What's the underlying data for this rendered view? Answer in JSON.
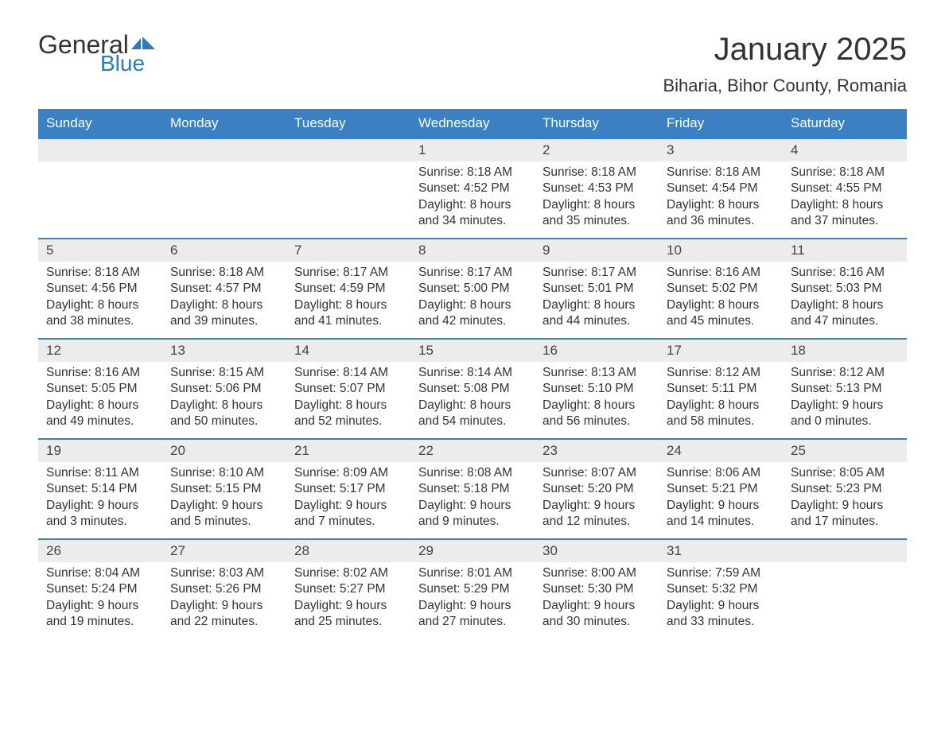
{
  "logo": {
    "text_general": "General",
    "text_blue": "Blue",
    "flag_color": "#2b7bbf"
  },
  "title": "January 2025",
  "location": "Biharia, Bihor County, Romania",
  "colors": {
    "header_bg": "#3a80c3",
    "header_text": "#ffffff",
    "daynum_bg": "#ececec",
    "row_border": "#3a80c3",
    "body_text": "#333333",
    "background": "#ffffff"
  },
  "weekdays": [
    "Sunday",
    "Monday",
    "Tuesday",
    "Wednesday",
    "Thursday",
    "Friday",
    "Saturday"
  ],
  "weeks": [
    [
      null,
      null,
      null,
      {
        "day": "1",
        "sunrise": "8:18 AM",
        "sunset": "4:52 PM",
        "daylight": "8 hours and 34 minutes."
      },
      {
        "day": "2",
        "sunrise": "8:18 AM",
        "sunset": "4:53 PM",
        "daylight": "8 hours and 35 minutes."
      },
      {
        "day": "3",
        "sunrise": "8:18 AM",
        "sunset": "4:54 PM",
        "daylight": "8 hours and 36 minutes."
      },
      {
        "day": "4",
        "sunrise": "8:18 AM",
        "sunset": "4:55 PM",
        "daylight": "8 hours and 37 minutes."
      }
    ],
    [
      {
        "day": "5",
        "sunrise": "8:18 AM",
        "sunset": "4:56 PM",
        "daylight": "8 hours and 38 minutes."
      },
      {
        "day": "6",
        "sunrise": "8:18 AM",
        "sunset": "4:57 PM",
        "daylight": "8 hours and 39 minutes."
      },
      {
        "day": "7",
        "sunrise": "8:17 AM",
        "sunset": "4:59 PM",
        "daylight": "8 hours and 41 minutes."
      },
      {
        "day": "8",
        "sunrise": "8:17 AM",
        "sunset": "5:00 PM",
        "daylight": "8 hours and 42 minutes."
      },
      {
        "day": "9",
        "sunrise": "8:17 AM",
        "sunset": "5:01 PM",
        "daylight": "8 hours and 44 minutes."
      },
      {
        "day": "10",
        "sunrise": "8:16 AM",
        "sunset": "5:02 PM",
        "daylight": "8 hours and 45 minutes."
      },
      {
        "day": "11",
        "sunrise": "8:16 AM",
        "sunset": "5:03 PM",
        "daylight": "8 hours and 47 minutes."
      }
    ],
    [
      {
        "day": "12",
        "sunrise": "8:16 AM",
        "sunset": "5:05 PM",
        "daylight": "8 hours and 49 minutes."
      },
      {
        "day": "13",
        "sunrise": "8:15 AM",
        "sunset": "5:06 PM",
        "daylight": "8 hours and 50 minutes."
      },
      {
        "day": "14",
        "sunrise": "8:14 AM",
        "sunset": "5:07 PM",
        "daylight": "8 hours and 52 minutes."
      },
      {
        "day": "15",
        "sunrise": "8:14 AM",
        "sunset": "5:08 PM",
        "daylight": "8 hours and 54 minutes."
      },
      {
        "day": "16",
        "sunrise": "8:13 AM",
        "sunset": "5:10 PM",
        "daylight": "8 hours and 56 minutes."
      },
      {
        "day": "17",
        "sunrise": "8:12 AM",
        "sunset": "5:11 PM",
        "daylight": "8 hours and 58 minutes."
      },
      {
        "day": "18",
        "sunrise": "8:12 AM",
        "sunset": "5:13 PM",
        "daylight": "9 hours and 0 minutes."
      }
    ],
    [
      {
        "day": "19",
        "sunrise": "8:11 AM",
        "sunset": "5:14 PM",
        "daylight": "9 hours and 3 minutes."
      },
      {
        "day": "20",
        "sunrise": "8:10 AM",
        "sunset": "5:15 PM",
        "daylight": "9 hours and 5 minutes."
      },
      {
        "day": "21",
        "sunrise": "8:09 AM",
        "sunset": "5:17 PM",
        "daylight": "9 hours and 7 minutes."
      },
      {
        "day": "22",
        "sunrise": "8:08 AM",
        "sunset": "5:18 PM",
        "daylight": "9 hours and 9 minutes."
      },
      {
        "day": "23",
        "sunrise": "8:07 AM",
        "sunset": "5:20 PM",
        "daylight": "9 hours and 12 minutes."
      },
      {
        "day": "24",
        "sunrise": "8:06 AM",
        "sunset": "5:21 PM",
        "daylight": "9 hours and 14 minutes."
      },
      {
        "day": "25",
        "sunrise": "8:05 AM",
        "sunset": "5:23 PM",
        "daylight": "9 hours and 17 minutes."
      }
    ],
    [
      {
        "day": "26",
        "sunrise": "8:04 AM",
        "sunset": "5:24 PM",
        "daylight": "9 hours and 19 minutes."
      },
      {
        "day": "27",
        "sunrise": "8:03 AM",
        "sunset": "5:26 PM",
        "daylight": "9 hours and 22 minutes."
      },
      {
        "day": "28",
        "sunrise": "8:02 AM",
        "sunset": "5:27 PM",
        "daylight": "9 hours and 25 minutes."
      },
      {
        "day": "29",
        "sunrise": "8:01 AM",
        "sunset": "5:29 PM",
        "daylight": "9 hours and 27 minutes."
      },
      {
        "day": "30",
        "sunrise": "8:00 AM",
        "sunset": "5:30 PM",
        "daylight": "9 hours and 30 minutes."
      },
      {
        "day": "31",
        "sunrise": "7:59 AM",
        "sunset": "5:32 PM",
        "daylight": "9 hours and 33 minutes."
      },
      null
    ]
  ],
  "labels": {
    "sunrise": "Sunrise: ",
    "sunset": "Sunset: ",
    "daylight": "Daylight: "
  }
}
